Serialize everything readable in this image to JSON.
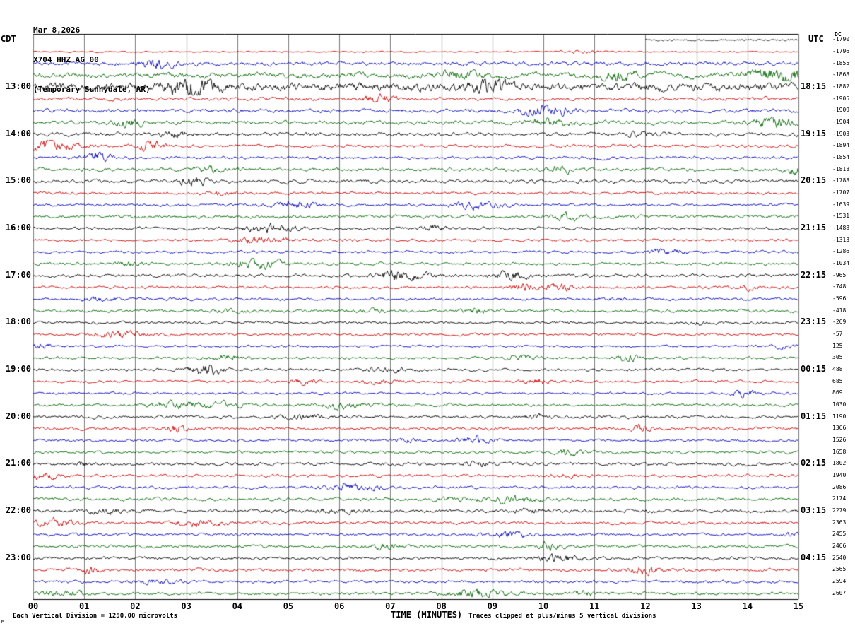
{
  "header": {
    "date": "Mar 8,2026",
    "station": "X704 HHZ AG 00",
    "location": "(Temporary Sunnydale, AR)"
  },
  "axes": {
    "left_tz": "CDT",
    "right_tz": "UTC",
    "dc_label": "DC",
    "x_label": "TIME (MINUTES)"
  },
  "footer": {
    "left": "Each Vertical Division = 1250.00 microvolts",
    "right": "Traces clipped at plus/minus 5 vertical divisions",
    "corner": "M"
  },
  "chart_data": {
    "type": "line",
    "subtype": "helicorder-seismogram",
    "title": "X704 HHZ AG 00 (Temporary Sunnydale, AR) Mar 8,2026",
    "xlabel": "TIME (MINUTES)",
    "x_range_minutes": [
      0,
      15
    ],
    "minutes_per_line": 15,
    "x_ticks": [
      "00",
      "01",
      "02",
      "03",
      "04",
      "05",
      "06",
      "07",
      "08",
      "09",
      "10",
      "11",
      "12",
      "13",
      "14",
      "15"
    ],
    "left_hour_labels": [
      "13:00",
      "14:00",
      "15:00",
      "16:00",
      "17:00",
      "18:00",
      "19:00",
      "20:00",
      "21:00",
      "22:00",
      "23:00"
    ],
    "right_hour_labels": [
      "18:15",
      "19:15",
      "20:15",
      "21:15",
      "22:15",
      "23:15",
      "00:15",
      "01:15",
      "02:15",
      "03:15",
      "04:15"
    ],
    "trace_color_cycle": [
      "#000000",
      "#cc0000",
      "#0000bb",
      "#006600"
    ],
    "vertical_division_microvolts": 1250.0,
    "clip_divisions": 5,
    "rows": [
      {
        "left_label": "",
        "right_label": "",
        "dc": -1790,
        "color": "#000000",
        "amp": 1.0,
        "start": 0.8
      },
      {
        "left_label": "",
        "right_label": "",
        "dc": -1796,
        "color": "#cc0000",
        "amp": 0.7
      },
      {
        "left_label": "",
        "right_label": "",
        "dc": -1855,
        "color": "#0000bb",
        "amp": 2.0
      },
      {
        "left_label": "",
        "right_label": "",
        "dc": -1868,
        "color": "#006600",
        "amp": 2.6,
        "slow": true
      },
      {
        "left_label": "13:00",
        "right_label": "18:15",
        "dc": -1882,
        "color": "#000000",
        "amp": 4.2
      },
      {
        "left_label": "",
        "right_label": "",
        "dc": -1905,
        "color": "#cc0000",
        "amp": 1.8
      },
      {
        "left_label": "",
        "right_label": "",
        "dc": -1909,
        "color": "#0000bb",
        "amp": 1.9
      },
      {
        "left_label": "",
        "right_label": "",
        "dc": -1904,
        "color": "#006600",
        "amp": 2.1
      },
      {
        "left_label": "14:00",
        "right_label": "19:15",
        "dc": -1903,
        "color": "#000000",
        "amp": 1.9
      },
      {
        "left_label": "",
        "right_label": "",
        "dc": -1894,
        "color": "#cc0000",
        "amp": 1.6
      },
      {
        "left_label": "",
        "right_label": "",
        "dc": -1854,
        "color": "#0000bb",
        "amp": 1.5
      },
      {
        "left_label": "",
        "right_label": "",
        "dc": -1818,
        "color": "#006600",
        "amp": 1.7
      },
      {
        "left_label": "15:00",
        "right_label": "20:15",
        "dc": -1788,
        "color": "#000000",
        "amp": 1.9
      },
      {
        "left_label": "",
        "right_label": "",
        "dc": -1707,
        "color": "#cc0000",
        "amp": 1.5
      },
      {
        "left_label": "",
        "right_label": "",
        "dc": -1639,
        "color": "#0000bb",
        "amp": 1.4
      },
      {
        "left_label": "",
        "right_label": "",
        "dc": -1531,
        "color": "#006600",
        "amp": 1.7
      },
      {
        "left_label": "16:00",
        "right_label": "21:15",
        "dc": -1488,
        "color": "#000000",
        "amp": 1.6
      },
      {
        "left_label": "",
        "right_label": "",
        "dc": -1313,
        "color": "#cc0000",
        "amp": 1.4
      },
      {
        "left_label": "",
        "right_label": "",
        "dc": -1286,
        "color": "#0000bb",
        "amp": 1.4
      },
      {
        "left_label": "",
        "right_label": "",
        "dc": -1034,
        "color": "#006600",
        "amp": 1.5
      },
      {
        "left_label": "17:00",
        "right_label": "22:15",
        "dc": -965,
        "color": "#000000",
        "amp": 1.7
      },
      {
        "left_label": "",
        "right_label": "",
        "dc": -748,
        "color": "#cc0000",
        "amp": 1.4
      },
      {
        "left_label": "",
        "right_label": "",
        "dc": -596,
        "color": "#0000bb",
        "amp": 1.4
      },
      {
        "left_label": "",
        "right_label": "",
        "dc": -418,
        "color": "#006600",
        "amp": 1.5
      },
      {
        "left_label": "18:00",
        "right_label": "23:15",
        "dc": -269,
        "color": "#000000",
        "amp": 1.4
      },
      {
        "left_label": "",
        "right_label": "",
        "dc": -57,
        "color": "#cc0000",
        "amp": 1.3
      },
      {
        "left_label": "",
        "right_label": "",
        "dc": 125,
        "color": "#0000bb",
        "amp": 1.2
      },
      {
        "left_label": "",
        "right_label": "",
        "dc": 305,
        "color": "#006600",
        "amp": 1.3
      },
      {
        "left_label": "19:00",
        "right_label": "00:15",
        "dc": 488,
        "color": "#000000",
        "amp": 1.4
      },
      {
        "left_label": "",
        "right_label": "",
        "dc": 685,
        "color": "#cc0000",
        "amp": 1.3
      },
      {
        "left_label": "",
        "right_label": "",
        "dc": 869,
        "color": "#0000bb",
        "amp": 1.3
      },
      {
        "left_label": "",
        "right_label": "",
        "dc": 1030,
        "color": "#006600",
        "amp": 1.4
      },
      {
        "left_label": "20:00",
        "right_label": "01:15",
        "dc": 1190,
        "color": "#000000",
        "amp": 1.6
      },
      {
        "left_label": "",
        "right_label": "",
        "dc": 1366,
        "color": "#cc0000",
        "amp": 1.5
      },
      {
        "left_label": "",
        "right_label": "",
        "dc": 1526,
        "color": "#0000bb",
        "amp": 1.4
      },
      {
        "left_label": "",
        "right_label": "",
        "dc": 1658,
        "color": "#006600",
        "amp": 1.5
      },
      {
        "left_label": "21:00",
        "right_label": "02:15",
        "dc": 1802,
        "color": "#000000",
        "amp": 1.7
      },
      {
        "left_label": "",
        "right_label": "",
        "dc": 1940,
        "color": "#cc0000",
        "amp": 1.5
      },
      {
        "left_label": "",
        "right_label": "",
        "dc": 2086,
        "color": "#0000bb",
        "amp": 1.4
      },
      {
        "left_label": "",
        "right_label": "",
        "dc": 2174,
        "color": "#006600",
        "amp": 1.6
      },
      {
        "left_label": "22:00",
        "right_label": "03:15",
        "dc": 2279,
        "color": "#000000",
        "amp": 1.8
      },
      {
        "left_label": "",
        "right_label": "",
        "dc": 2363,
        "color": "#cc0000",
        "amp": 1.6
      },
      {
        "left_label": "",
        "right_label": "",
        "dc": 2455,
        "color": "#0000bb",
        "amp": 1.5
      },
      {
        "left_label": "",
        "right_label": "",
        "dc": 2466,
        "color": "#006600",
        "amp": 1.6
      },
      {
        "left_label": "23:00",
        "right_label": "04:15",
        "dc": 2540,
        "color": "#000000",
        "amp": 1.6
      },
      {
        "left_label": "",
        "right_label": "",
        "dc": 2565,
        "color": "#cc0000",
        "amp": 1.7
      },
      {
        "left_label": "",
        "right_label": "",
        "dc": 2594,
        "color": "#0000bb",
        "amp": 1.5
      },
      {
        "left_label": "",
        "right_label": "",
        "dc": 2607,
        "color": "#006600",
        "amp": 1.6
      }
    ]
  }
}
